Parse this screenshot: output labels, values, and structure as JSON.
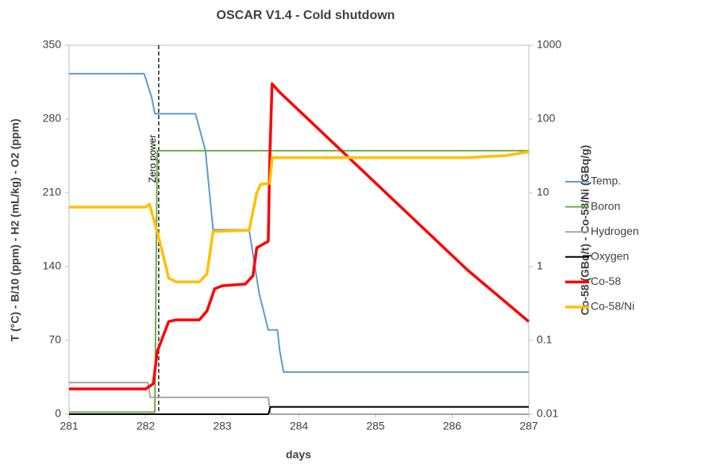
{
  "chart_data": {
    "type": "line",
    "title": "OSCAR V1.4 - Cold shutdown",
    "x_label": "days",
    "y_label": "T (°C) - B/10 (ppm) - H2 (mL/kg) - O2 (ppm)",
    "y2_label": "Co-58 (GBq/t) - Co-58/Ni (GBq/g)",
    "xlim": [
      281,
      287
    ],
    "xticks": [
      281,
      282,
      283,
      284,
      285,
      286,
      287
    ],
    "ylim": [
      0,
      350
    ],
    "yticks": [
      0,
      70,
      140,
      210,
      280,
      350
    ],
    "y2lim": [
      0.01,
      1000
    ],
    "y2ticks": [
      0.01,
      0.1,
      1,
      10,
      100,
      1000
    ],
    "y2_log": true,
    "grid": false,
    "legend": "right",
    "vline": {
      "x": 282.17,
      "label": "Zero power"
    },
    "series": [
      {
        "name": "Temp.",
        "color": "#5b9bd5",
        "x": [
          281,
          281.98,
          282.08,
          282.12,
          282.65,
          282.78,
          282.88,
          283.0,
          283.35,
          283.48,
          283.6,
          283.72,
          283.75,
          283.8,
          287
        ],
        "values": [
          323,
          323,
          300,
          285,
          285,
          250,
          175,
          175,
          175,
          115,
          80,
          80,
          60,
          40,
          40
        ]
      },
      {
        "name": "Boron",
        "color": "#70ad47",
        "x": [
          281,
          282.12,
          282.15,
          287
        ],
        "values": [
          2,
          2,
          250,
          250
        ]
      },
      {
        "name": "Hydrogen",
        "color": "#a5a5a5",
        "x": [
          281,
          282.03,
          282.06,
          283.6,
          283.63,
          287
        ],
        "values": [
          30,
          30,
          16,
          16,
          0,
          0
        ]
      },
      {
        "name": "Oxygen",
        "color": "#000000",
        "x": [
          281,
          283.6,
          283.63,
          287
        ],
        "values": [
          0,
          0,
          7,
          7
        ]
      },
      {
        "name": "Co-58",
        "color": "#ff0000",
        "axis": "y2",
        "x": [
          281,
          282.0,
          282.1,
          282.15,
          282.3,
          282.4,
          282.7,
          282.8,
          282.9,
          283.0,
          283.3,
          283.4,
          283.45,
          283.6,
          283.62,
          283.65,
          283.75,
          286.2,
          287
        ],
        "values": [
          0.022,
          0.022,
          0.026,
          0.07,
          0.18,
          0.19,
          0.19,
          0.25,
          0.5,
          0.55,
          0.58,
          0.75,
          1.8,
          2.2,
          30,
          300,
          230,
          0.9,
          0.18
        ]
      },
      {
        "name": "Co-58/Ni",
        "color": "#ffc000",
        "axis": "y2",
        "x": [
          281,
          282.0,
          282.05,
          282.15,
          282.25,
          282.3,
          282.4,
          282.7,
          282.8,
          282.88,
          283.35,
          283.45,
          283.5,
          283.62,
          283.65,
          286.2,
          286.7,
          287
        ],
        "values": [
          6.4,
          6.4,
          7,
          3,
          1.15,
          0.7,
          0.62,
          0.62,
          0.8,
          3,
          3.1,
          10,
          13,
          13.5,
          30,
          30,
          32,
          36
        ]
      }
    ]
  }
}
